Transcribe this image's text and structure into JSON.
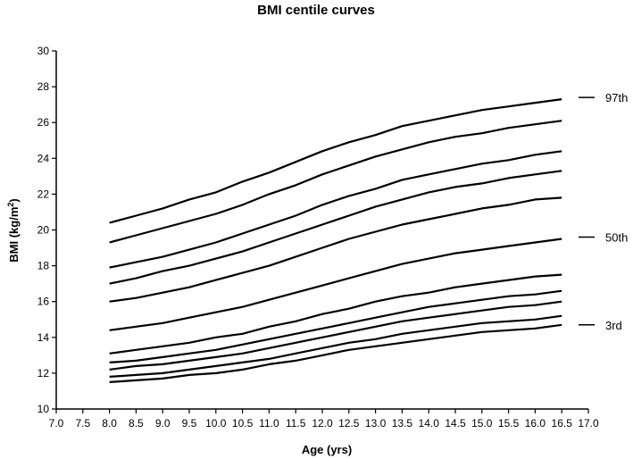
{
  "chart_data": {
    "type": "line",
    "title": "BMI centile curves",
    "xlabel": "Age (yrs)",
    "ylabel_main": "BMI (kg/m",
    "ylabel_sup": "2",
    "ylabel_end": ")",
    "xlim": [
      7.0,
      17.0
    ],
    "ylim": [
      10,
      30
    ],
    "x_ticks": [
      "7.0",
      "7.5",
      "8.0",
      "8.5",
      "9.0",
      "9.5",
      "10.0",
      "10.5",
      "11.0",
      "11.5",
      "12.0",
      "12.5",
      "13.0",
      "13.5",
      "14.0",
      "14.5",
      "15.0",
      "15.5",
      "16.0",
      "16.5",
      "17.0"
    ],
    "y_ticks": [
      "10",
      "12",
      "14",
      "16",
      "18",
      "20",
      "22",
      "24",
      "26",
      "28",
      "30"
    ],
    "grid": false,
    "x": [
      8.0,
      8.5,
      9.0,
      9.5,
      10.0,
      10.5,
      11.0,
      11.5,
      12.0,
      12.5,
      13.0,
      13.5,
      14.0,
      14.5,
      15.0,
      15.5,
      16.0,
      16.5
    ],
    "series": [
      {
        "values": [
          20.4,
          20.8,
          21.2,
          21.7,
          22.1,
          22.7,
          23.2,
          23.8,
          24.4,
          24.9,
          25.3,
          25.8,
          26.1,
          26.4,
          26.7,
          26.9,
          27.1,
          27.3
        ]
      },
      {
        "values": [
          19.3,
          19.7,
          20.1,
          20.5,
          20.9,
          21.4,
          22.0,
          22.5,
          23.1,
          23.6,
          24.1,
          24.5,
          24.9,
          25.2,
          25.4,
          25.7,
          25.9,
          26.1
        ]
      },
      {
        "values": [
          17.9,
          18.2,
          18.5,
          18.9,
          19.3,
          19.8,
          20.3,
          20.8,
          21.4,
          21.9,
          22.3,
          22.8,
          23.1,
          23.4,
          23.7,
          23.9,
          24.2,
          24.4
        ]
      },
      {
        "values": [
          17.0,
          17.3,
          17.7,
          18.0,
          18.4,
          18.8,
          19.3,
          19.8,
          20.3,
          20.8,
          21.3,
          21.7,
          22.1,
          22.4,
          22.6,
          22.9,
          23.1,
          23.3
        ]
      },
      {
        "values": [
          16.0,
          16.2,
          16.5,
          16.8,
          17.2,
          17.6,
          18.0,
          18.5,
          19.0,
          19.5,
          19.9,
          20.3,
          20.6,
          20.9,
          21.2,
          21.4,
          21.7,
          21.8
        ]
      },
      {
        "values": [
          14.4,
          14.6,
          14.8,
          15.1,
          15.4,
          15.7,
          16.1,
          16.5,
          16.9,
          17.3,
          17.7,
          18.1,
          18.4,
          18.7,
          18.9,
          19.1,
          19.3,
          19.5
        ]
      },
      {
        "values": [
          13.1,
          13.3,
          13.5,
          13.7,
          14.0,
          14.2,
          14.6,
          14.9,
          15.3,
          15.6,
          16.0,
          16.3,
          16.5,
          16.8,
          17.0,
          17.2,
          17.4,
          17.5
        ]
      },
      {
        "values": [
          12.6,
          12.7,
          12.9,
          13.1,
          13.3,
          13.6,
          13.9,
          14.2,
          14.5,
          14.8,
          15.1,
          15.4,
          15.7,
          15.9,
          16.1,
          16.3,
          16.4,
          16.6
        ]
      },
      {
        "values": [
          12.2,
          12.4,
          12.5,
          12.7,
          12.9,
          13.1,
          13.4,
          13.7,
          14.0,
          14.3,
          14.6,
          14.9,
          15.1,
          15.3,
          15.5,
          15.7,
          15.8,
          16.0
        ]
      },
      {
        "values": [
          11.8,
          11.9,
          12.0,
          12.2,
          12.4,
          12.6,
          12.8,
          13.1,
          13.4,
          13.7,
          13.9,
          14.2,
          14.4,
          14.6,
          14.8,
          14.9,
          15.0,
          15.2
        ]
      },
      {
        "values": [
          11.5,
          11.6,
          11.7,
          11.9,
          12.0,
          12.2,
          12.5,
          12.7,
          13.0,
          13.3,
          13.5,
          13.7,
          13.9,
          14.1,
          14.3,
          14.4,
          14.5,
          14.7
        ]
      }
    ],
    "annotations": [
      {
        "text": "97th",
        "y": 27.4
      },
      {
        "text": "50th",
        "y": 19.6
      },
      {
        "text": "3rd",
        "y": 14.7
      }
    ]
  }
}
